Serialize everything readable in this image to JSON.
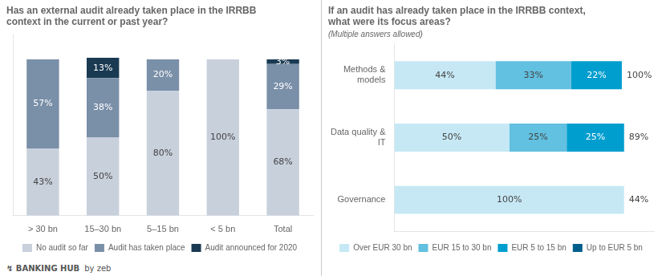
{
  "chart_data": [
    {
      "type": "bar",
      "title": "Has an external audit already taken place in the IRRBB\ncontext in the current or past year?",
      "categories": [
        "> 30 bn",
        "15–30 bn",
        "5–15 bn",
        "< 5 bn",
        "Total"
      ],
      "series": [
        {
          "name": "No audit so far",
          "color": "#c8d0dc",
          "values": [
            43,
            50,
            80,
            100,
            68
          ],
          "value_labels": [
            "43%",
            "50%",
            "80%",
            "100%",
            "68%"
          ]
        },
        {
          "name": "Audit has taken place",
          "color": "#7a8fa8",
          "values": [
            57,
            38,
            20,
            0,
            29
          ],
          "value_labels": [
            "57%",
            "38%",
            "20%",
            null,
            "29%"
          ]
        },
        {
          "name": "Audit announced for 2020",
          "color": "#1a3a52",
          "values": [
            0,
            13,
            0,
            0,
            3
          ],
          "value_labels": [
            null,
            "13%",
            null,
            null,
            "3%"
          ]
        }
      ],
      "stacked": true,
      "ylim": [
        0,
        116
      ],
      "tick_labels": "x",
      "grid": false,
      "legend": "bottom",
      "data_labels": true,
      "annotations": [
        "↯ BANKING HUB",
        "by zeb"
      ]
    },
    {
      "type": "bar",
      "orientation": "horizontal",
      "title": "If an audit has already taken place in the IRRBB context,\nwhat were its focus areas?",
      "subtitle": "(Multiple answers allowed)",
      "categories": [
        "Methods &\nmodels",
        "Data quality &\nIT",
        "Governance"
      ],
      "series": [
        {
          "name": "Over EUR 30 bn",
          "color": "#c6e8f5",
          "values": [
            44,
            50,
            100
          ],
          "value_labels": [
            "44%",
            "50%",
            "100%"
          ]
        },
        {
          "name": "EUR 15 to 30 bn",
          "color": "#62c0e0",
          "values": [
            33,
            25,
            0
          ],
          "value_labels": [
            "33%",
            "25%",
            null
          ]
        },
        {
          "name": "EUR 5 to 15 bn",
          "color": "#009ecf",
          "values": [
            22,
            25,
            0
          ],
          "value_labels": [
            "22%",
            "25%",
            null
          ]
        },
        {
          "name": "Up to EUR 5 bn",
          "color": "#005f8a",
          "values": [
            0,
            0,
            0
          ],
          "value_labels": [
            null,
            null,
            null
          ]
        }
      ],
      "total_labels": [
        "100%",
        "89%",
        "44%"
      ],
      "stacked": true,
      "xlim": [
        0,
        113
      ],
      "tick_labels": "y",
      "grid": false,
      "legend": "bottom",
      "data_labels": true
    }
  ]
}
